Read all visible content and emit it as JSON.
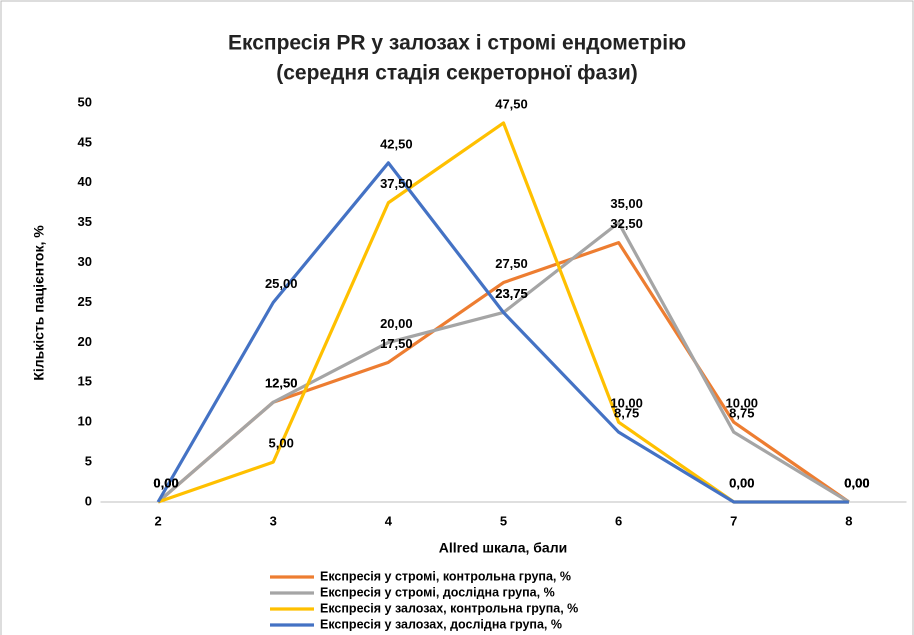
{
  "chart_data": {
    "type": "line",
    "title": "Експресія PR у залозах і стромі ендометрію",
    "subtitle": "(середня стадія секреторної фази)",
    "x_label": "Allred шкала, бали",
    "y_label": "Кількість пацієнток, %",
    "categories": [
      "2",
      "3",
      "4",
      "5",
      "6",
      "7",
      "8"
    ],
    "ylim": [
      0,
      50
    ],
    "yticks": [
      0,
      5,
      10,
      15,
      20,
      25,
      30,
      35,
      40,
      45,
      50
    ],
    "grid": false,
    "legend": "bottom",
    "series": [
      {
        "name": "Експресія у стромі, контрольна група, %",
        "color": "#ed7d31",
        "values": [
          0,
          12.5,
          17.5,
          27.5,
          32.5,
          10,
          0
        ],
        "value_labels": [
          "0,00",
          "12,50",
          "17,50",
          "27,50",
          "32,50",
          "10,00",
          "0,00"
        ]
      },
      {
        "name": "Експресія у стромі, дослідна група, %",
        "color": "#a5a5a5",
        "values": [
          0,
          12.5,
          20,
          23.75,
          35,
          8.75,
          0
        ],
        "value_labels": [
          "0,00",
          "12,50",
          "20,00",
          "23,75",
          "35,00",
          "8,75",
          "0,00"
        ]
      },
      {
        "name": "Експресія у залозах, контрольна група, %",
        "color": "#ffc000",
        "values": [
          0,
          5,
          37.5,
          47.5,
          10,
          0,
          0
        ],
        "value_labels": [
          "0,00",
          "5,00",
          "37,50",
          "47,50",
          "10,00",
          "0,00",
          "0,00"
        ]
      },
      {
        "name": "Експресія у залозах, дослідна група, %",
        "color": "#4472c4",
        "values": [
          0,
          25,
          42.5,
          23.75,
          8.75,
          0,
          0
        ],
        "value_labels": [
          "0,00",
          "25,00",
          "42,50",
          "23,75",
          "8,75",
          "0,00",
          "0,00"
        ]
      }
    ]
  }
}
